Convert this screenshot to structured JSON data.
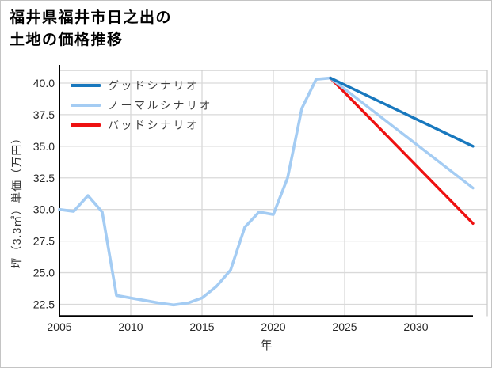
{
  "page": {
    "background": "#ffffff",
    "border_color": "#c4c4c4"
  },
  "styles": {
    "grid_color": "#d9d9d9",
    "spine_gray": "#c9c9c9",
    "spine_black": "#000000",
    "tick_color": "#262626",
    "legend_text_color": "#3d3d3d",
    "title_color": "#000000"
  },
  "chart_data": {
    "type": "line",
    "title_line1": "福井県福井市日之出の",
    "title_line2": "土地の価格推移",
    "xlabel": "年",
    "ylabel": "坪（3.3㎡）単価（万円）",
    "x_ticks": [
      2005,
      2010,
      2015,
      2020,
      2025,
      2030
    ],
    "y_ticks": [
      22.5,
      25.0,
      27.5,
      30.0,
      32.5,
      35.0,
      37.5,
      40.0
    ],
    "xlim": [
      2005,
      2035
    ],
    "ylim": [
      21.56,
      41.0
    ],
    "x_axis_end": 2034,
    "grid": true,
    "legend_position": "upper-left-inside",
    "legend": [
      {
        "label": "グッドシナリオ",
        "color": "#1878be",
        "series": "good"
      },
      {
        "label": "ノーマルシナリオ",
        "color": "#a4ccf3",
        "series": "normal"
      },
      {
        "label": "バッドシナリオ",
        "color": "#ee1111",
        "series": "bad"
      }
    ],
    "history": {
      "color": "#a4ccf3",
      "years": [
        2005,
        2006,
        2007,
        2008,
        2009,
        2010,
        2011,
        2012,
        2013,
        2014,
        2015,
        2016,
        2017,
        2018,
        2019,
        2020,
        2021,
        2022,
        2023,
        2024
      ],
      "values": [
        30.0,
        29.85,
        31.1,
        29.8,
        23.2,
        23.0,
        22.8,
        22.6,
        22.45,
        22.6,
        23.0,
        23.9,
        25.2,
        28.6,
        29.8,
        29.6,
        32.5,
        38.0,
        40.3,
        40.4
      ]
    },
    "scenarios": [
      {
        "name": "good",
        "x": [
          2024,
          2034
        ],
        "values": [
          40.4,
          35.0
        ]
      },
      {
        "name": "normal",
        "x": [
          2024,
          2034
        ],
        "values": [
          40.4,
          31.7
        ]
      },
      {
        "name": "bad",
        "x": [
          2024,
          2034
        ],
        "values": [
          40.4,
          28.9
        ]
      }
    ]
  }
}
